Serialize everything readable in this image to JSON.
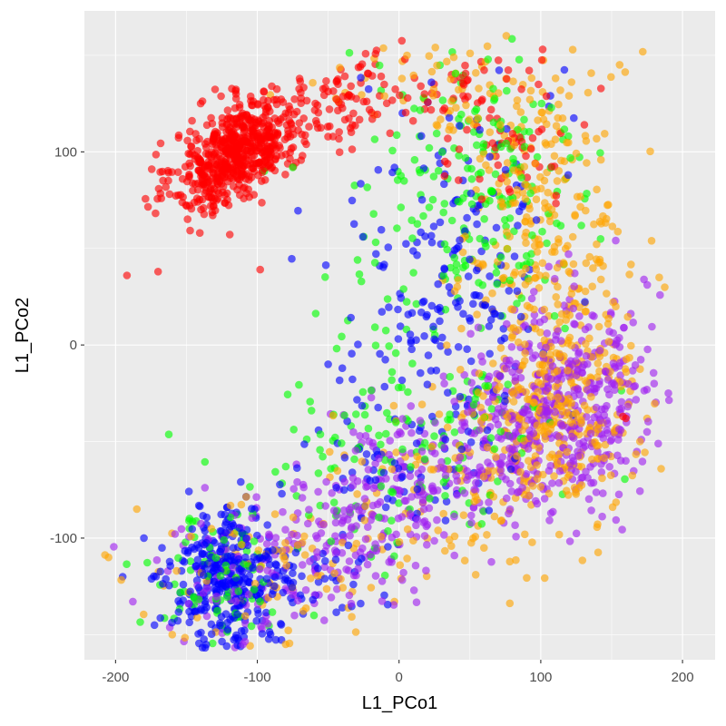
{
  "chart_data": {
    "type": "scatter",
    "title": "",
    "xlabel": "L1_PCo1",
    "ylabel": "L1_PCo2",
    "xlim": [
      -222,
      223
    ],
    "ylim": [
      -163,
      173
    ],
    "x_ticks": [
      -200,
      -100,
      0,
      100,
      200
    ],
    "x_tick_labels": [
      "-200",
      "-100",
      "0",
      "100",
      "200"
    ],
    "y_ticks": [
      -100,
      0,
      100
    ],
    "y_tick_labels": [
      "-100",
      "0",
      "100"
    ],
    "grid": true,
    "legend": "none",
    "series": [
      {
        "color": "#FF0000",
        "clusters": [
          {
            "center": [
              -115,
              100
            ],
            "spread": [
              22,
              15
            ],
            "count": 620,
            "corr": 0.55
          },
          {
            "center": [
              -55,
              118
            ],
            "spread": [
              28,
              12
            ],
            "count": 80,
            "corr": 0.4
          },
          {
            "center": [
              5,
              135
            ],
            "spread": [
              25,
              10
            ],
            "count": 45,
            "corr": 0
          },
          {
            "center": [
              75,
              112
            ],
            "spread": [
              30,
              20
            ],
            "count": 70,
            "corr": 0
          }
        ],
        "outliers": [
          [
            -192,
            36
          ],
          [
            -170,
            38
          ],
          [
            -98,
            39
          ],
          [
            -115,
            130
          ],
          [
            -140,
            125
          ],
          [
            -80,
            120
          ],
          [
            158,
            -37
          ],
          [
            160,
            -38
          ]
        ]
      },
      {
        "color": "#FFA500",
        "clusters": [
          {
            "center": [
              100,
              60
            ],
            "spread": [
              30,
              45
            ],
            "count": 260,
            "corr": 0
          },
          {
            "center": [
              115,
              -30
            ],
            "spread": [
              25,
              30
            ],
            "count": 300,
            "corr": 0
          },
          {
            "center": [
              50,
              -65
            ],
            "spread": [
              50,
              25
            ],
            "count": 130,
            "corr": 0.3
          },
          {
            "center": [
              -90,
              -120
            ],
            "spread": [
              55,
              20
            ],
            "count": 90,
            "corr": 0
          },
          {
            "center": [
              30,
              135
            ],
            "spread": [
              45,
              12
            ],
            "count": 60,
            "corr": 0
          }
        ],
        "outliers": [
          [
            -205,
            -110
          ],
          [
            -185,
            -85
          ],
          [
            -160,
            -150
          ],
          [
            -80,
            -155
          ],
          [
            160,
            -20
          ],
          [
            170,
            -50
          ],
          [
            175,
            -38
          ]
        ]
      },
      {
        "color": "#00FF00",
        "clusters": [
          {
            "center": [
              60,
              80
            ],
            "spread": [
              35,
              45
            ],
            "count": 200,
            "corr": 0
          },
          {
            "center": [
              0,
              -60
            ],
            "spread": [
              60,
              30
            ],
            "count": 130,
            "corr": 0.3
          },
          {
            "center": [
              -130,
              -120
            ],
            "spread": [
              25,
              18
            ],
            "count": 80,
            "corr": 0
          },
          {
            "center": [
              -10,
              20
            ],
            "spread": [
              20,
              40
            ],
            "count": 40,
            "corr": 0
          }
        ],
        "outliers": [
          [
            -75,
            92
          ],
          [
            -95,
            90
          ],
          [
            -148,
            -95
          ],
          [
            -60,
            -140
          ]
        ]
      },
      {
        "color": "#0000FF",
        "clusters": [
          {
            "center": [
              -122,
              -122
            ],
            "spread": [
              20,
              18
            ],
            "count": 330,
            "corr": 0
          },
          {
            "center": [
              40,
              40
            ],
            "spread": [
              35,
              50
            ],
            "count": 200,
            "corr": 0
          },
          {
            "center": [
              -10,
              -60
            ],
            "spread": [
              35,
              25
            ],
            "count": 70,
            "corr": 0.2
          },
          {
            "center": [
              -60,
              -125
            ],
            "spread": [
              25,
              15
            ],
            "count": 40,
            "corr": 0
          }
        ],
        "outliers": [
          [
            -195,
            -120
          ],
          [
            -180,
            -100
          ],
          [
            -50,
            -10
          ],
          [
            -40,
            -12
          ]
        ]
      },
      {
        "color": "#A020F0",
        "clusters": [
          {
            "center": [
              115,
              -30
            ],
            "spread": [
              30,
              28
            ],
            "count": 430,
            "corr": 0
          },
          {
            "center": [
              40,
              -60
            ],
            "spread": [
              45,
              20
            ],
            "count": 220,
            "corr": 0.35
          },
          {
            "center": [
              -40,
              -100
            ],
            "spread": [
              40,
              18
            ],
            "count": 170,
            "corr": 0.35
          },
          {
            "center": [
              -130,
              -120
            ],
            "spread": [
              25,
              18
            ],
            "count": 60,
            "corr": 0
          }
        ],
        "outliers": [
          [
            190,
            -25
          ],
          [
            175,
            -45
          ],
          [
            180,
            -20
          ],
          [
            160,
            -60
          ]
        ]
      }
    ]
  }
}
